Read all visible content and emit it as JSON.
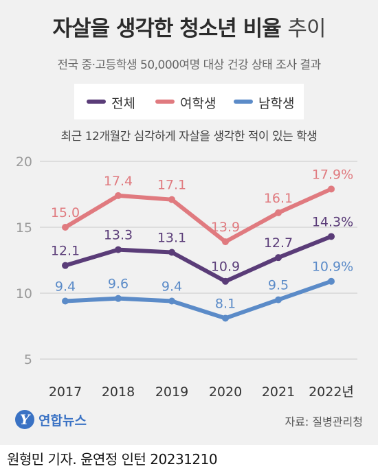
{
  "header": {
    "title": "자살을 생각한 청소년 비율",
    "title_suffix": "추이",
    "subtitle": "전국 중·고등학생 50,000여명 대상 건강 상태 조사 결과"
  },
  "legend": {
    "items": [
      {
        "label": "전체",
        "color": "#5a3c78"
      },
      {
        "label": "여학생",
        "color": "#e07a7f"
      },
      {
        "label": "남학생",
        "color": "#5b8bc8"
      }
    ]
  },
  "chart_subtitle": "최근 12개월간 심각하게 자살을 생각한 적이 있는 학생",
  "chart_data": {
    "type": "line",
    "x": [
      "2017",
      "2018",
      "2019",
      "2020",
      "2021",
      "2022"
    ],
    "x_tick_labels": [
      "2017",
      "2018",
      "2019",
      "2020",
      "2021",
      "2022년"
    ],
    "y_ticks": [
      "5",
      "10",
      "15",
      "20"
    ],
    "ylim": [
      5,
      20
    ],
    "grid": true,
    "series": [
      {
        "name": "전체",
        "color": "#5a3c78",
        "values": [
          12.1,
          13.3,
          13.1,
          10.9,
          12.7,
          14.3
        ],
        "labels": [
          "12.1",
          "13.3",
          "13.1",
          "10.9",
          "12.7",
          "14.3%"
        ]
      },
      {
        "name": "여학생",
        "color": "#e07a7f",
        "values": [
          15.0,
          17.4,
          17.1,
          13.9,
          16.1,
          17.9
        ],
        "labels": [
          "15.0",
          "17.4",
          "17.1",
          "13.9",
          "16.1",
          "17.9%"
        ]
      },
      {
        "name": "남학생",
        "color": "#5b8bc8",
        "values": [
          9.4,
          9.6,
          9.4,
          8.1,
          9.5,
          10.9
        ],
        "labels": [
          "9.4",
          "9.6",
          "9.4",
          "8.1",
          "9.5",
          "10.9%"
        ]
      }
    ]
  },
  "footer": {
    "logo_mark": "Y",
    "logo_text": "연합뉴스",
    "source": "자료: 질병관리청",
    "credit": "원형민 기자. 윤연정 인턴  20231210"
  }
}
